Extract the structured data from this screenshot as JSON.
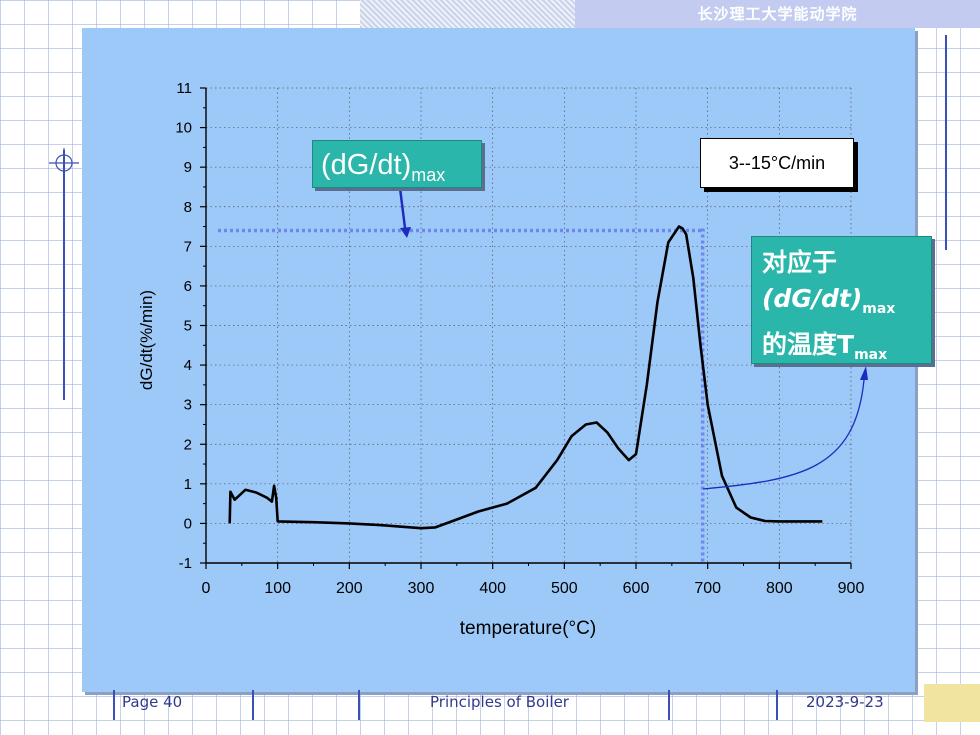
{
  "header": {
    "school": "长沙理工大学能动学院"
  },
  "footer": {
    "page": "Page 40",
    "course": "Principles of Boiler",
    "date": "2023-9-23"
  },
  "annotations": {
    "dgdt_main": "(dG/dt)",
    "dgdt_sub": "max",
    "rate": "3--15°C/min",
    "temp_line1": "对应于",
    "temp_line2_main": "(dG/dt)",
    "temp_line2_sub": "max",
    "temp_line3_main": "的温度T",
    "temp_line3_sub": "max"
  },
  "colors": {
    "slide_bg": "#9dc9f9",
    "teal_box": "#2ab6aa",
    "dotted_line": "#6f86f0",
    "curve": "#000000",
    "arrow": "#1a2dbf"
  },
  "chart_data": {
    "type": "line",
    "title": "",
    "xlabel": "temperature(°C)",
    "ylabel": "dG/dt(%/min)",
    "xlim": [
      0,
      900
    ],
    "ylim": [
      -1,
      11
    ],
    "xticks": [
      0,
      100,
      200,
      300,
      400,
      500,
      600,
      700,
      800,
      900
    ],
    "yticks": [
      -1,
      0,
      1,
      2,
      3,
      4,
      5,
      6,
      7,
      8,
      9,
      10,
      11
    ],
    "grid": true,
    "x": [
      33,
      34,
      40,
      55,
      70,
      85,
      92,
      95,
      98,
      100,
      150,
      200,
      250,
      300,
      320,
      350,
      380,
      420,
      460,
      490,
      510,
      530,
      545,
      560,
      575,
      590,
      600,
      615,
      630,
      645,
      660,
      665,
      670,
      680,
      690,
      700,
      720,
      740,
      760,
      780,
      800,
      820,
      860
    ],
    "y": [
      0.0,
      0.8,
      0.6,
      0.85,
      0.78,
      0.65,
      0.55,
      0.95,
      0.65,
      0.05,
      0.03,
      0.0,
      -0.05,
      -0.12,
      -0.1,
      0.1,
      0.3,
      0.5,
      0.9,
      1.6,
      2.2,
      2.5,
      2.55,
      2.3,
      1.9,
      1.6,
      1.75,
      3.5,
      5.6,
      7.1,
      7.5,
      7.45,
      7.3,
      6.2,
      4.5,
      3.0,
      1.2,
      0.4,
      0.15,
      0.06,
      0.05,
      0.05,
      0.05
    ],
    "max_point": {
      "x": 665,
      "y": 7.45
    },
    "tmax_x": 693
  }
}
